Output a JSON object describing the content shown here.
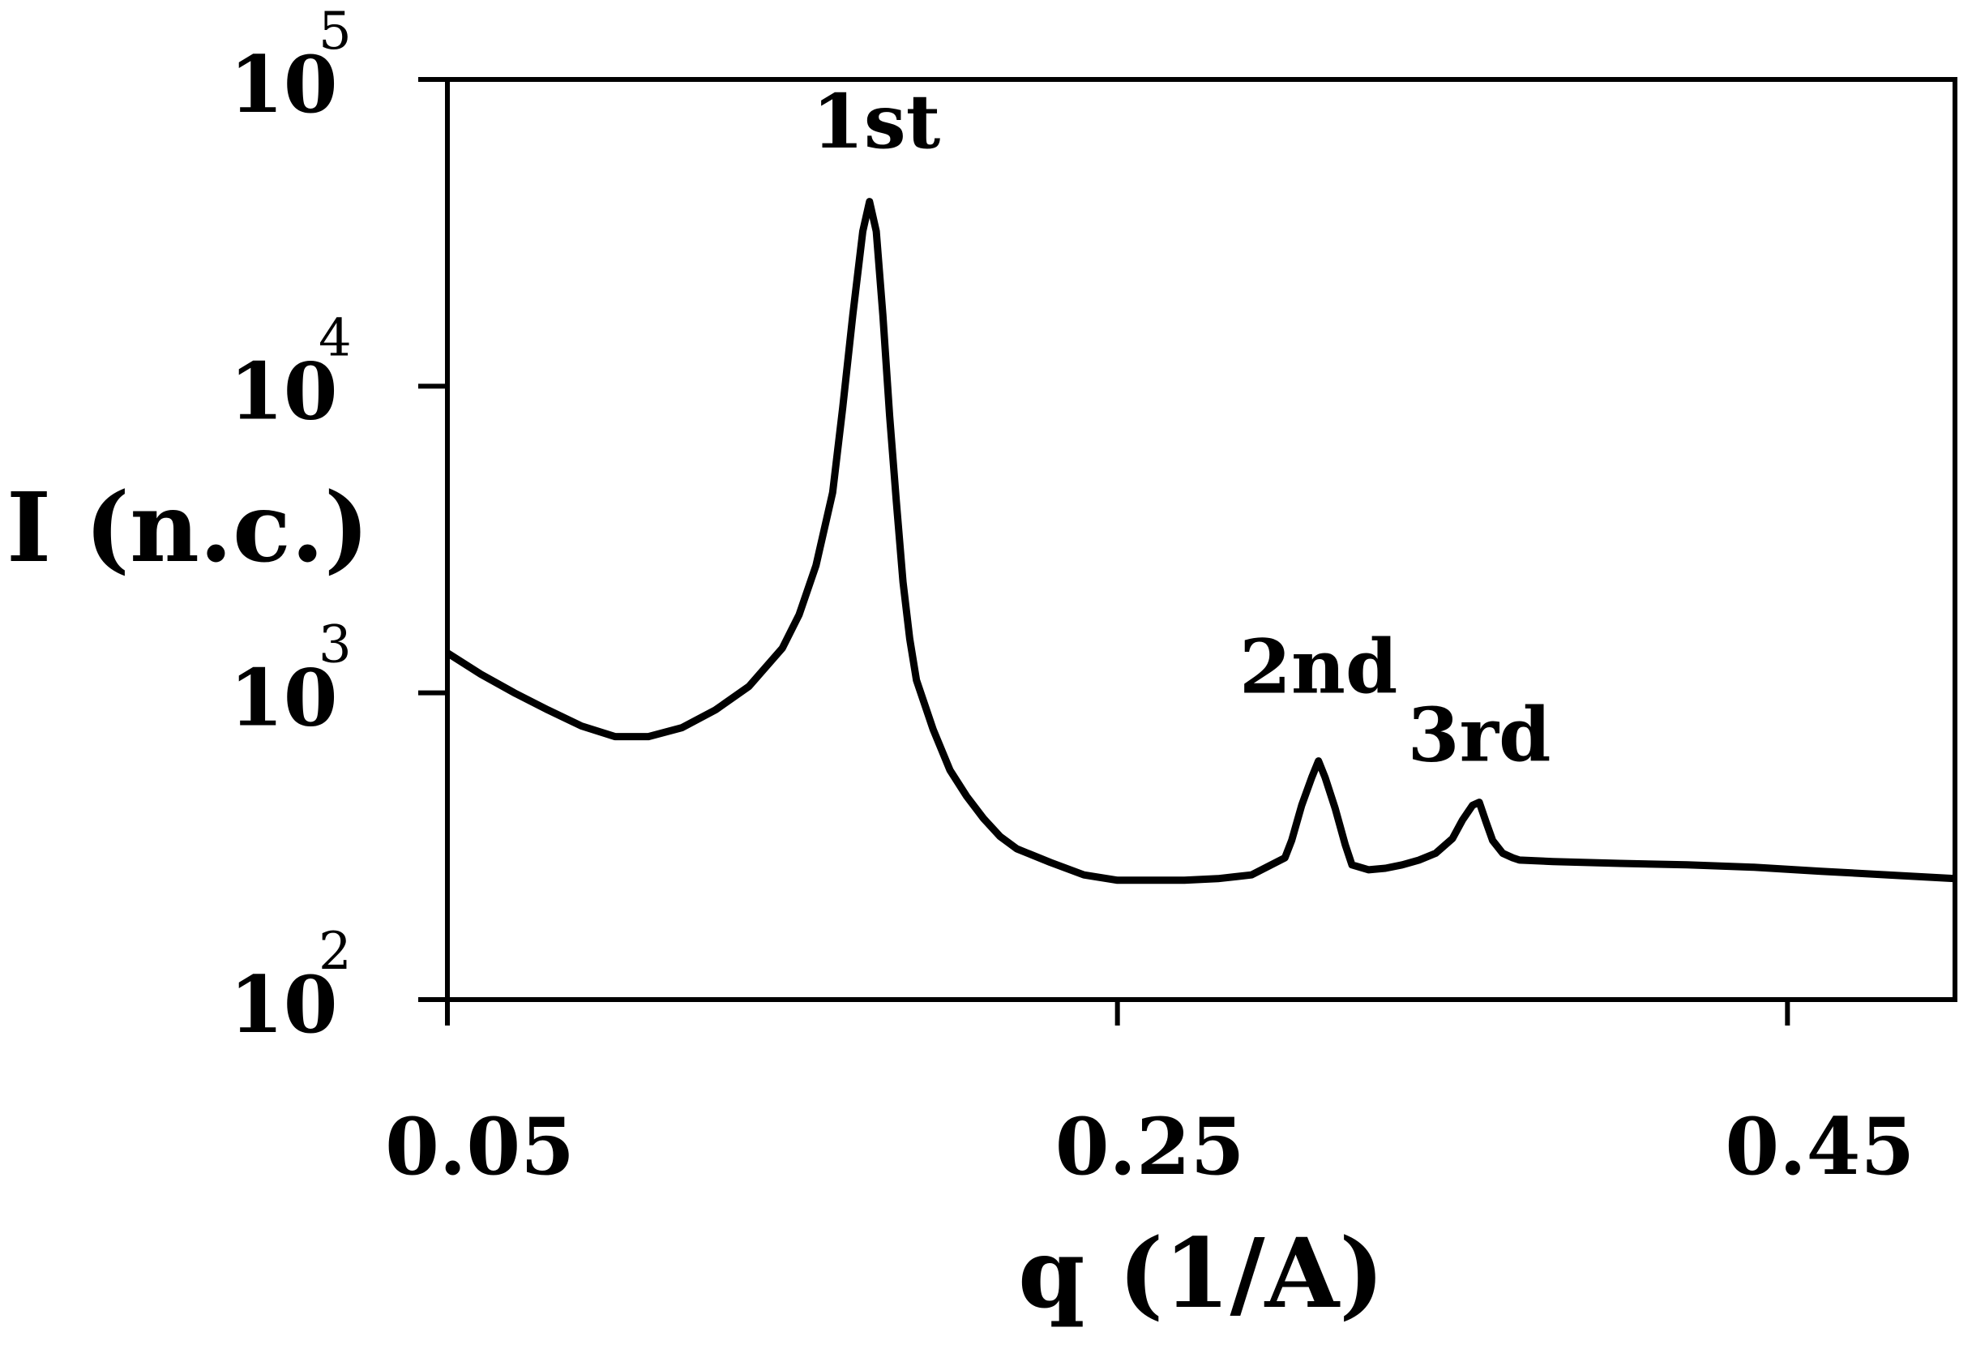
{
  "chart_data": {
    "type": "line",
    "title": "",
    "xlabel": "q (1/A)",
    "ylabel": "I (n.c.)",
    "xlim": [
      0.05,
      0.5
    ],
    "ylim": [
      100,
      100000
    ],
    "y_scale": "log",
    "grid": false,
    "legend": "none",
    "x_ticks": [
      {
        "value": 0.05,
        "label": "0.05"
      },
      {
        "value": 0.25,
        "label": "0.25"
      },
      {
        "value": 0.45,
        "label": "0.45"
      }
    ],
    "y_ticks": [
      {
        "value": 100,
        "base": "10",
        "exp": "2"
      },
      {
        "value": 1000,
        "base": "10",
        "exp": "3"
      },
      {
        "value": 10000,
        "base": "10",
        "exp": "4"
      },
      {
        "value": 100000,
        "base": "10",
        "exp": "5"
      }
    ],
    "annotations": [
      {
        "label": "1st",
        "x": 0.178,
        "y": 60000
      },
      {
        "label": "2nd",
        "x": 0.31,
        "y": 1000
      },
      {
        "label": "3rd",
        "x": 0.358,
        "y": 600
      }
    ],
    "series": [
      {
        "color": "#000000",
        "x": [
          0.05,
          0.06,
          0.07,
          0.08,
          0.09,
          0.1,
          0.11,
          0.12,
          0.13,
          0.14,
          0.15,
          0.155,
          0.16,
          0.165,
          0.168,
          0.171,
          0.174,
          0.176,
          0.178,
          0.18,
          0.182,
          0.184,
          0.186,
          0.188,
          0.19,
          0.195,
          0.2,
          0.205,
          0.21,
          0.215,
          0.22,
          0.23,
          0.24,
          0.25,
          0.26,
          0.27,
          0.28,
          0.29,
          0.3,
          0.302,
          0.305,
          0.308,
          0.31,
          0.312,
          0.315,
          0.318,
          0.32,
          0.325,
          0.33,
          0.335,
          0.34,
          0.345,
          0.35,
          0.353,
          0.356,
          0.358,
          0.36,
          0.362,
          0.365,
          0.368,
          0.37,
          0.38,
          0.4,
          0.42,
          0.44,
          0.46,
          0.48,
          0.5
        ],
        "y": [
          1350,
          1150,
          1000,
          880,
          780,
          720,
          720,
          770,
          880,
          1050,
          1400,
          1800,
          2600,
          4500,
          8500,
          17000,
          32000,
          40000,
          32000,
          17000,
          8000,
          4200,
          2300,
          1500,
          1100,
          760,
          560,
          460,
          390,
          340,
          310,
          280,
          255,
          245,
          245,
          245,
          248,
          255,
          290,
          330,
          430,
          530,
          600,
          530,
          420,
          320,
          275,
          265,
          268,
          275,
          285,
          300,
          335,
          385,
          430,
          440,
          380,
          330,
          300,
          290,
          285,
          282,
          278,
          275,
          270,
          262,
          255,
          248
        ]
      }
    ]
  }
}
